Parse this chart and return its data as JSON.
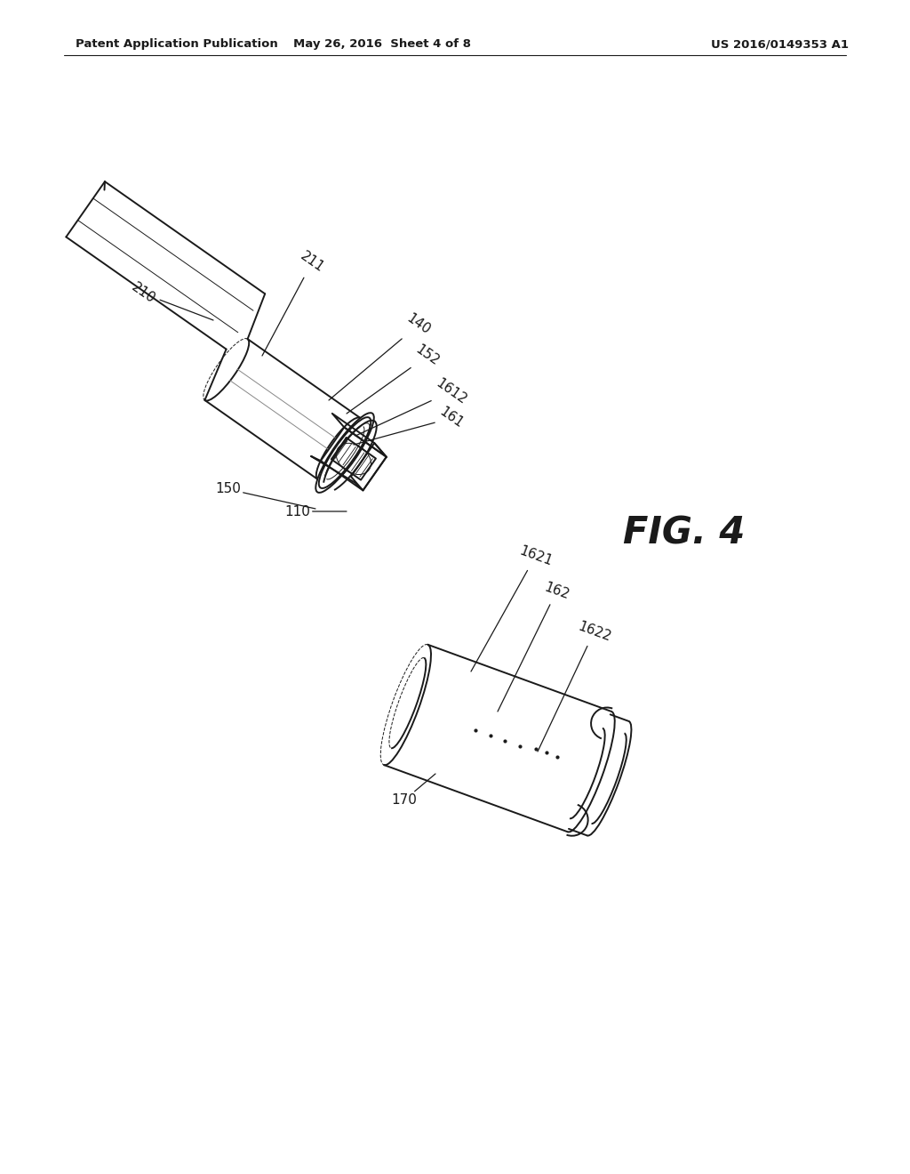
{
  "bg_color": "#ffffff",
  "line_color": "#1a1a1a",
  "header_left": "Patent Application Publication",
  "header_mid": "May 26, 2016  Sheet 4 of 8",
  "header_right": "US 2016/0149353 A1",
  "fig_label": "FIG. 4",
  "lw_main": 1.4,
  "lw_thin": 0.7,
  "lw_thick": 2.0
}
